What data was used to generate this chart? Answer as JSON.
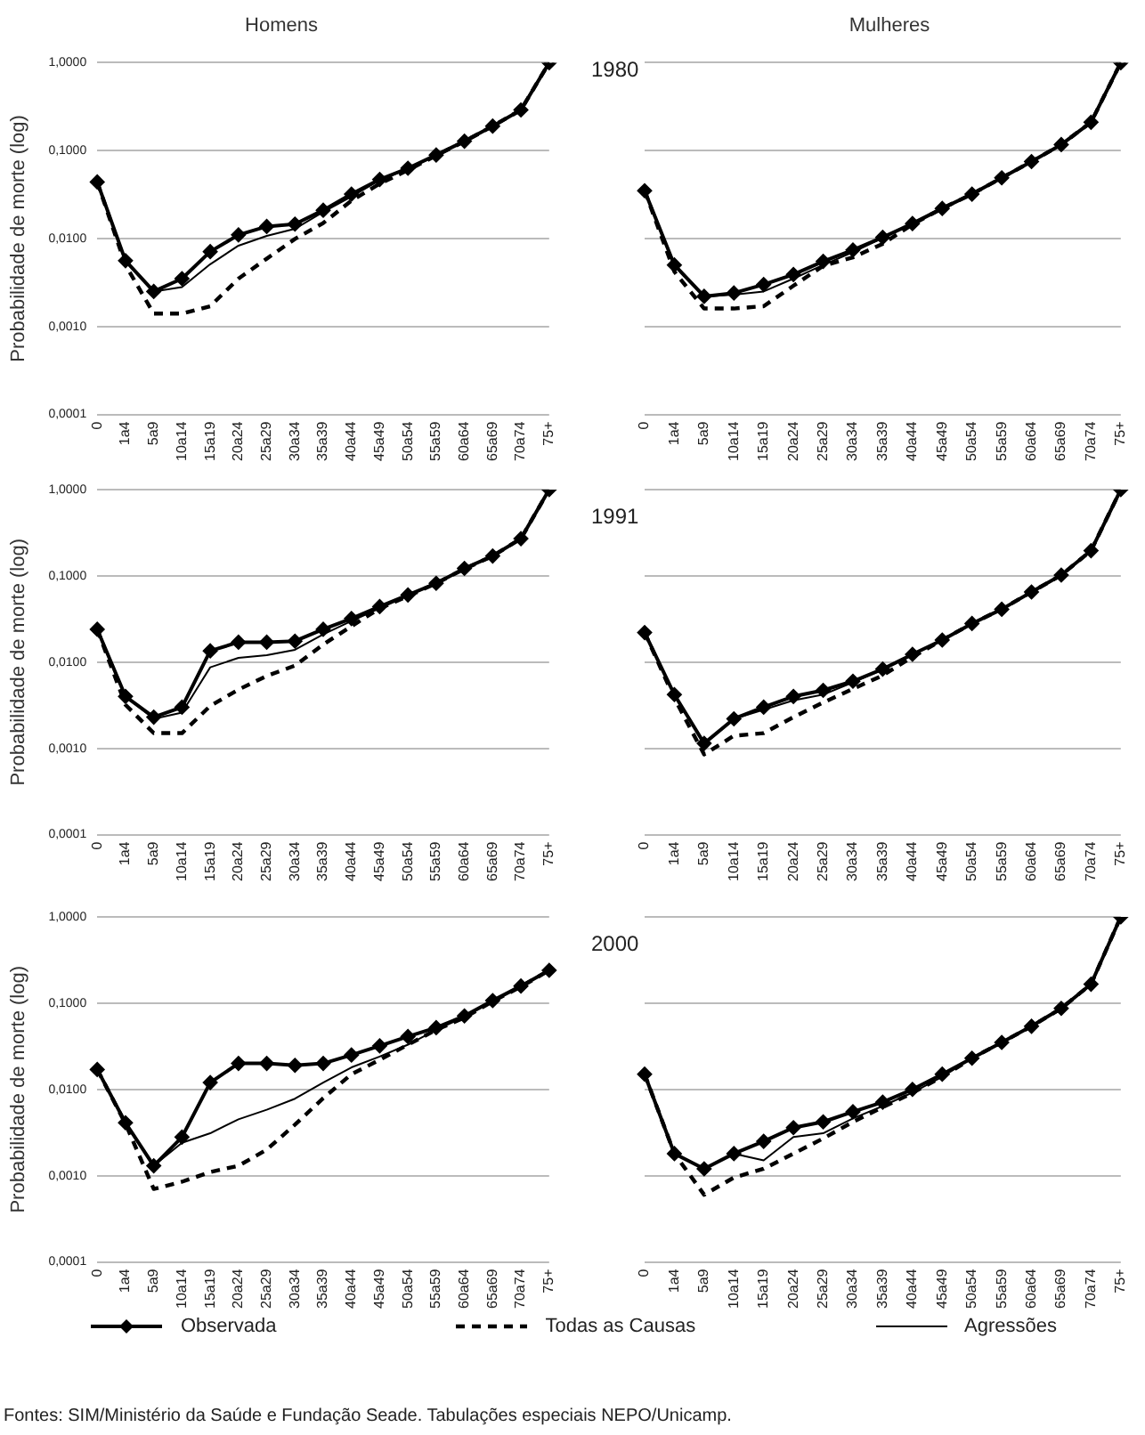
{
  "chart_data": [
    {
      "type": "line",
      "title": "Homens",
      "ylabel": "Probabilidade de morte (log)",
      "log": true,
      "grid": "y",
      "legend": false,
      "categories": [
        "0",
        "1a4",
        "5a9",
        "10a14",
        "15a19",
        "20a24",
        "25a29",
        "30a34",
        "35a39",
        "40a44",
        "45a49",
        "50a54",
        "55a59",
        "60a64",
        "65a69",
        "70a74",
        "75+"
      ],
      "ylim": [
        0.0001,
        1
      ],
      "yticks": [
        {
          "value": 0.0001,
          "label": "0,0001"
        },
        {
          "value": 0.001,
          "label": "0,0010"
        },
        {
          "value": 0.01,
          "label": "0,0100"
        },
        {
          "value": 0.1,
          "label": "0,1000"
        },
        {
          "value": 1,
          "label": "1,0000"
        }
      ],
      "series": [
        {
          "color": "#000000",
          "marker": "diamond",
          "line_style": "solid",
          "values": [
            0.044,
            0.0056,
            0.0025,
            0.0035,
            0.0071,
            0.011,
            0.0137,
            0.0146,
            0.021,
            0.032,
            0.047,
            0.063,
            0.089,
            0.128,
            0.19,
            0.29,
            1.0
          ]
        },
        {
          "color": "#000000",
          "marker": "none",
          "line_style": "dashed",
          "values": [
            0.044,
            0.005,
            0.0014,
            0.0014,
            0.0017,
            0.0035,
            0.0059,
            0.0099,
            0.015,
            0.027,
            0.042,
            0.06,
            0.088,
            0.127,
            0.19,
            0.29,
            1.0
          ]
        },
        {
          "color": "#000000",
          "marker": "none",
          "line_style": "solid",
          "values": [
            0.044,
            0.0056,
            0.0025,
            0.0028,
            0.0051,
            0.0083,
            0.0107,
            0.0129,
            0.02,
            0.03,
            0.046,
            0.062,
            0.088,
            0.128,
            0.19,
            0.29,
            1.0
          ]
        }
      ]
    },
    {
      "type": "line",
      "title": "Mulheres",
      "annotations": [
        "1980"
      ],
      "log": true,
      "grid": "y",
      "legend": false,
      "tick_labels": "x",
      "categories": [
        "0",
        "1a4",
        "5a9",
        "10a14",
        "15a19",
        "20a24",
        "25a29",
        "30a34",
        "35a39",
        "40a44",
        "45a49",
        "50a54",
        "55a59",
        "60a64",
        "65a69",
        "70a74",
        "75+"
      ],
      "ylim": [
        0.0001,
        1
      ],
      "yticks": [
        0.0001,
        0.001,
        0.01,
        0.1,
        1
      ],
      "series": [
        {
          "color": "#000000",
          "marker": "diamond",
          "line_style": "solid",
          "values": [
            0.035,
            0.005,
            0.0022,
            0.0024,
            0.003,
            0.0039,
            0.0055,
            0.0074,
            0.0103,
            0.0148,
            0.022,
            0.032,
            0.049,
            0.075,
            0.117,
            0.21,
            1.0
          ]
        },
        {
          "color": "#000000",
          "marker": "none",
          "line_style": "dashed",
          "values": [
            0.035,
            0.0042,
            0.0016,
            0.0016,
            0.0017,
            0.0029,
            0.0049,
            0.0061,
            0.0087,
            0.0145,
            0.022,
            0.032,
            0.049,
            0.075,
            0.117,
            0.21,
            1.0
          ]
        },
        {
          "color": "#000000",
          "marker": "none",
          "line_style": "solid",
          "values": [
            0.035,
            0.005,
            0.0022,
            0.0023,
            0.0025,
            0.0035,
            0.005,
            0.007,
            0.0102,
            0.0148,
            0.022,
            0.032,
            0.049,
            0.075,
            0.117,
            0.21,
            1.0
          ]
        }
      ]
    },
    {
      "type": "line",
      "ylabel": "Probabilidade de morte (log)",
      "log": true,
      "grid": "y",
      "legend": false,
      "categories": [
        "0",
        "1a4",
        "5a9",
        "10a14",
        "15a19",
        "20a24",
        "25a29",
        "30a34",
        "35a39",
        "40a44",
        "45a49",
        "50a54",
        "55a59",
        "60a64",
        "65a69",
        "70a74",
        "75+"
      ],
      "ylim": [
        0.0001,
        1
      ],
      "yticks": [
        {
          "value": 0.0001,
          "label": "0,0001"
        },
        {
          "value": 0.001,
          "label": "0,0010"
        },
        {
          "value": 0.01,
          "label": "0,0100"
        },
        {
          "value": 0.1,
          "label": "0,1000"
        },
        {
          "value": 1,
          "label": "1,0000"
        }
      ],
      "series": [
        {
          "color": "#000000",
          "marker": "diamond",
          "line_style": "solid",
          "values": [
            0.024,
            0.004,
            0.0023,
            0.003,
            0.0135,
            0.017,
            0.017,
            0.0175,
            0.024,
            0.032,
            0.044,
            0.06,
            0.082,
            0.122,
            0.17,
            0.27,
            1.0
          ]
        },
        {
          "color": "#000000",
          "marker": "none",
          "line_style": "dashed",
          "values": [
            0.024,
            0.0032,
            0.0015,
            0.0015,
            0.0031,
            0.0048,
            0.0069,
            0.0091,
            0.016,
            0.026,
            0.042,
            0.058,
            0.082,
            0.12,
            0.17,
            0.27,
            1.0
          ]
        },
        {
          "color": "#000000",
          "marker": "none",
          "line_style": "solid",
          "values": [
            0.024,
            0.004,
            0.0022,
            0.0026,
            0.0087,
            0.0112,
            0.012,
            0.0139,
            0.021,
            0.03,
            0.042,
            0.059,
            0.082,
            0.122,
            0.17,
            0.27,
            1.0
          ]
        }
      ]
    },
    {
      "type": "line",
      "annotations": [
        "1991"
      ],
      "log": true,
      "grid": "y",
      "legend": false,
      "tick_labels": "x",
      "categories": [
        "0",
        "1a4",
        "5a9",
        "10a14",
        "15a19",
        "20a24",
        "25a29",
        "30a34",
        "35a39",
        "40a44",
        "45a49",
        "50a54",
        "55a59",
        "60a64",
        "65a69",
        "70a74",
        "75+"
      ],
      "ylim": [
        0.0001,
        1
      ],
      "yticks": [
        0.0001,
        0.001,
        0.01,
        0.1,
        1
      ],
      "series": [
        {
          "color": "#000000",
          "marker": "diamond",
          "line_style": "solid",
          "values": [
            0.022,
            0.0042,
            0.00114,
            0.0022,
            0.003,
            0.004,
            0.0047,
            0.006,
            0.0083,
            0.0123,
            0.018,
            0.028,
            0.041,
            0.065,
            0.102,
            0.196,
            1.0
          ]
        },
        {
          "color": "#000000",
          "marker": "none",
          "line_style": "dashed",
          "values": [
            0.022,
            0.0038,
            0.00085,
            0.0014,
            0.0015,
            0.0023,
            0.0034,
            0.0049,
            0.007,
            0.0115,
            0.018,
            0.028,
            0.041,
            0.065,
            0.102,
            0.196,
            1.0
          ]
        },
        {
          "color": "#000000",
          "marker": "none",
          "line_style": "solid",
          "values": [
            0.022,
            0.0042,
            0.00114,
            0.0022,
            0.0028,
            0.0036,
            0.0042,
            0.0058,
            0.0082,
            0.0122,
            0.018,
            0.028,
            0.041,
            0.065,
            0.102,
            0.196,
            1.0
          ]
        }
      ]
    },
    {
      "type": "line",
      "ylabel": "Probabilidade de morte (log)",
      "log": true,
      "grid": "y",
      "legend": "bottom",
      "categories": [
        "0",
        "1a4",
        "5a9",
        "10a14",
        "15a19",
        "20a24",
        "25a29",
        "30a34",
        "35a39",
        "40a44",
        "45a49",
        "50a54",
        "55a59",
        "60a64",
        "65a69",
        "70a74",
        "75+"
      ],
      "ylim": [
        0.0001,
        1
      ],
      "yticks": [
        {
          "value": 0.0001,
          "label": "0,0001"
        },
        {
          "value": 0.001,
          "label": "0,0010"
        },
        {
          "value": 0.01,
          "label": "0,0100"
        },
        {
          "value": 0.1,
          "label": "0,1000"
        },
        {
          "value": 1,
          "label": "1,0000"
        }
      ],
      "series": [
        {
          "name": "Observada",
          "color": "#000000",
          "marker": "diamond",
          "line_style": "solid",
          "values": [
            0.017,
            0.0041,
            0.0013,
            0.0028,
            0.012,
            0.02,
            0.02,
            0.019,
            0.02,
            0.025,
            0.032,
            0.041,
            0.052,
            0.071,
            0.107,
            0.158,
            0.24
          ]
        },
        {
          "name": "Todas as Causas",
          "color": "#000000",
          "marker": "none",
          "line_style": "dashed",
          "values": [
            0.017,
            0.004,
            0.0007,
            0.00085,
            0.0011,
            0.0013,
            0.002,
            0.0039,
            0.0079,
            0.015,
            0.022,
            0.033,
            0.049,
            0.068,
            0.105,
            0.155,
            0.24
          ]
        },
        {
          "name": "Agressões",
          "color": "#000000",
          "marker": "none",
          "line_style": "solid",
          "values": [
            0.017,
            0.004,
            0.0013,
            0.0024,
            0.0031,
            0.0045,
            0.0058,
            0.0078,
            0.012,
            0.018,
            0.024,
            0.033,
            0.049,
            0.069,
            0.105,
            0.155,
            0.24
          ]
        }
      ]
    },
    {
      "type": "line",
      "annotations": [
        "2000",
        "Fontes: SIM/Ministério da Saúde e Fundação Seade. Tabulações especiais NEPO/Unicamp."
      ],
      "log": true,
      "grid": "y",
      "legend": false,
      "tick_labels": "x",
      "categories": [
        "0",
        "1a4",
        "5a9",
        "10a14",
        "15a19",
        "20a24",
        "25a29",
        "30a34",
        "35a39",
        "40a44",
        "45a49",
        "50a54",
        "55a59",
        "60a64",
        "65a69",
        "70a74",
        "75+"
      ],
      "ylim": [
        0.0001,
        1
      ],
      "yticks": [
        0.0001,
        0.001,
        0.01,
        0.1,
        1
      ],
      "series": [
        {
          "color": "#000000",
          "marker": "diamond",
          "line_style": "solid",
          "values": [
            0.015,
            0.0018,
            0.0012,
            0.0018,
            0.0025,
            0.0036,
            0.0042,
            0.0055,
            0.0071,
            0.01,
            0.015,
            0.023,
            0.035,
            0.054,
            0.087,
            0.166,
            1.0
          ]
        },
        {
          "color": "#000000",
          "marker": "none",
          "line_style": "dashed",
          "values": [
            0.015,
            0.0018,
            0.0006,
            0.00095,
            0.0012,
            0.0018,
            0.0027,
            0.0042,
            0.0062,
            0.0091,
            0.014,
            0.023,
            0.035,
            0.054,
            0.087,
            0.166,
            1.0
          ]
        },
        {
          "color": "#000000",
          "marker": "none",
          "line_style": "solid",
          "values": [
            0.015,
            0.0018,
            0.0012,
            0.0018,
            0.0015,
            0.0028,
            0.0031,
            0.0046,
            0.0064,
            0.0092,
            0.014,
            0.023,
            0.035,
            0.054,
            0.087,
            0.166,
            1.0
          ]
        }
      ]
    }
  ]
}
